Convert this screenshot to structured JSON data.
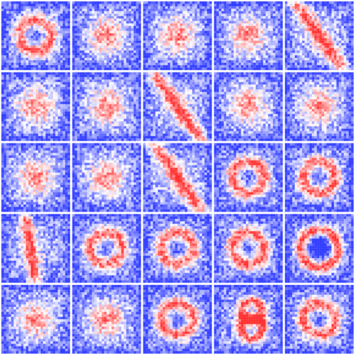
{
  "figure": {
    "description_hidden": "",
    "grid": {
      "rows": 5,
      "cols": 5
    },
    "tile": {
      "pixels_per_side": 28
    },
    "colormap": {
      "low": "#2f3cff",
      "mid": "#ffffff",
      "high": "#ff2f2f"
    },
    "tiles": [
      {
        "pattern": "circle"
      },
      {
        "pattern": "blob"
      },
      {
        "pattern": "blob"
      },
      {
        "pattern": "blob"
      },
      {
        "pattern": "diag"
      },
      {
        "pattern": "blob"
      },
      {
        "pattern": "blob"
      },
      {
        "pattern": "diag"
      },
      {
        "pattern": "blob"
      },
      {
        "pattern": "blob"
      },
      {
        "pattern": "blob"
      },
      {
        "pattern": "blob"
      },
      {
        "pattern": "diag"
      },
      {
        "pattern": "circle"
      },
      {
        "pattern": "circle"
      },
      {
        "pattern": "stroke"
      },
      {
        "pattern": "circle"
      },
      {
        "pattern": "circle"
      },
      {
        "pattern": "circle"
      },
      {
        "pattern": "ring"
      },
      {
        "pattern": "blob"
      },
      {
        "pattern": "blob"
      },
      {
        "pattern": "circle"
      },
      {
        "pattern": "three"
      },
      {
        "pattern": "circle"
      }
    ]
  }
}
